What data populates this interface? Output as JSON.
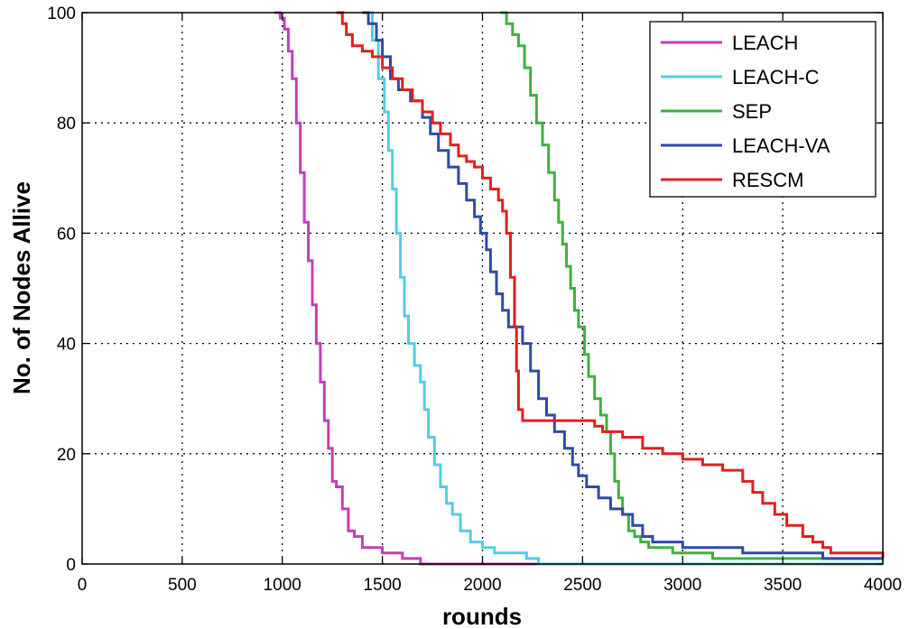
{
  "chart_data": {
    "type": "line",
    "title": "",
    "xlabel": "rounds",
    "ylabel": "No. of Nodes Allive",
    "xlim": [
      0,
      4000
    ],
    "ylim": [
      0,
      100
    ],
    "xticks": [
      0,
      500,
      1000,
      1500,
      2000,
      2500,
      3000,
      3500,
      4000
    ],
    "yticks": [
      0,
      20,
      40,
      60,
      80,
      100
    ],
    "grid": true,
    "legend_position": "top-right",
    "series": [
      {
        "name": "LEACH",
        "color": "#c040b8",
        "points": [
          [
            960,
            100
          ],
          [
            990,
            99
          ],
          [
            1010,
            97
          ],
          [
            1030,
            93
          ],
          [
            1050,
            88
          ],
          [
            1070,
            80
          ],
          [
            1090,
            71
          ],
          [
            1110,
            62
          ],
          [
            1130,
            55
          ],
          [
            1150,
            47
          ],
          [
            1170,
            40
          ],
          [
            1190,
            33
          ],
          [
            1210,
            26
          ],
          [
            1230,
            21
          ],
          [
            1250,
            15
          ],
          [
            1270,
            14
          ],
          [
            1300,
            10
          ],
          [
            1330,
            6
          ],
          [
            1360,
            5
          ],
          [
            1400,
            3
          ],
          [
            1450,
            3
          ],
          [
            1500,
            2
          ],
          [
            1550,
            2
          ],
          [
            1600,
            1
          ],
          [
            1650,
            1
          ],
          [
            1690,
            0
          ],
          [
            4000,
            0
          ]
        ]
      },
      {
        "name": "LEACH-C",
        "color": "#55cce0",
        "points": [
          [
            1420,
            100
          ],
          [
            1450,
            95
          ],
          [
            1480,
            88
          ],
          [
            1510,
            82
          ],
          [
            1530,
            75
          ],
          [
            1550,
            68
          ],
          [
            1570,
            60
          ],
          [
            1590,
            52
          ],
          [
            1610,
            45
          ],
          [
            1630,
            40
          ],
          [
            1660,
            36
          ],
          [
            1690,
            33
          ],
          [
            1710,
            28
          ],
          [
            1730,
            23
          ],
          [
            1760,
            18
          ],
          [
            1790,
            14
          ],
          [
            1820,
            11
          ],
          [
            1850,
            9
          ],
          [
            1890,
            6
          ],
          [
            1940,
            4
          ],
          [
            2000,
            3
          ],
          [
            2060,
            2
          ],
          [
            2100,
            2
          ],
          [
            2150,
            2
          ],
          [
            2220,
            1
          ],
          [
            2280,
            0
          ],
          [
            4000,
            0
          ]
        ]
      },
      {
        "name": "SEP",
        "color": "#40b040",
        "points": [
          [
            2090,
            100
          ],
          [
            2120,
            98
          ],
          [
            2150,
            96
          ],
          [
            2180,
            94
          ],
          [
            2210,
            90
          ],
          [
            2240,
            85
          ],
          [
            2270,
            80
          ],
          [
            2300,
            76
          ],
          [
            2330,
            71
          ],
          [
            2360,
            66
          ],
          [
            2380,
            62
          ],
          [
            2400,
            58
          ],
          [
            2420,
            54
          ],
          [
            2440,
            50
          ],
          [
            2460,
            46
          ],
          [
            2480,
            43
          ],
          [
            2510,
            38
          ],
          [
            2530,
            34
          ],
          [
            2560,
            30
          ],
          [
            2590,
            27
          ],
          [
            2620,
            24
          ],
          [
            2640,
            20
          ],
          [
            2660,
            15
          ],
          [
            2680,
            12
          ],
          [
            2700,
            9
          ],
          [
            2730,
            6
          ],
          [
            2760,
            5
          ],
          [
            2790,
            4
          ],
          [
            2830,
            3
          ],
          [
            2880,
            3
          ],
          [
            2950,
            2
          ],
          [
            3050,
            2
          ],
          [
            3150,
            1
          ],
          [
            3400,
            1
          ],
          [
            4000,
            1
          ]
        ]
      },
      {
        "name": "LEACH-VA",
        "color": "#2f4aa8",
        "points": [
          [
            1400,
            100
          ],
          [
            1430,
            98
          ],
          [
            1470,
            95
          ],
          [
            1500,
            92
          ],
          [
            1540,
            88
          ],
          [
            1580,
            86
          ],
          [
            1640,
            84
          ],
          [
            1700,
            81
          ],
          [
            1740,
            78
          ],
          [
            1780,
            75
          ],
          [
            1830,
            72
          ],
          [
            1880,
            69
          ],
          [
            1920,
            66
          ],
          [
            1960,
            63
          ],
          [
            1990,
            60
          ],
          [
            2020,
            57
          ],
          [
            2040,
            53
          ],
          [
            2070,
            49
          ],
          [
            2100,
            46
          ],
          [
            2130,
            43
          ],
          [
            2200,
            40
          ],
          [
            2240,
            35
          ],
          [
            2280,
            30
          ],
          [
            2320,
            27
          ],
          [
            2360,
            24
          ],
          [
            2410,
            21
          ],
          [
            2450,
            18
          ],
          [
            2480,
            16
          ],
          [
            2520,
            14
          ],
          [
            2580,
            12
          ],
          [
            2640,
            10
          ],
          [
            2700,
            9
          ],
          [
            2750,
            7
          ],
          [
            2800,
            5
          ],
          [
            2850,
            4
          ],
          [
            2920,
            4
          ],
          [
            3000,
            3
          ],
          [
            3100,
            3
          ],
          [
            3300,
            2
          ],
          [
            3500,
            2
          ],
          [
            3700,
            1
          ],
          [
            4000,
            1
          ]
        ]
      },
      {
        "name": "RESCM",
        "color": "#e02020",
        "points": [
          [
            1270,
            100
          ],
          [
            1300,
            98
          ],
          [
            1320,
            96
          ],
          [
            1350,
            94
          ],
          [
            1400,
            93
          ],
          [
            1450,
            92
          ],
          [
            1500,
            90
          ],
          [
            1550,
            88
          ],
          [
            1600,
            86
          ],
          [
            1650,
            84
          ],
          [
            1700,
            82
          ],
          [
            1750,
            80
          ],
          [
            1790,
            78
          ],
          [
            1840,
            76
          ],
          [
            1880,
            74
          ],
          [
            1920,
            73
          ],
          [
            1960,
            72
          ],
          [
            2000,
            70
          ],
          [
            2040,
            68
          ],
          [
            2080,
            66
          ],
          [
            2100,
            64
          ],
          [
            2120,
            60
          ],
          [
            2140,
            52
          ],
          [
            2160,
            43
          ],
          [
            2170,
            35
          ],
          [
            2180,
            28
          ],
          [
            2200,
            26
          ],
          [
            2300,
            26
          ],
          [
            2450,
            26
          ],
          [
            2560,
            25
          ],
          [
            2600,
            24
          ],
          [
            2700,
            23
          ],
          [
            2800,
            21
          ],
          [
            2900,
            20
          ],
          [
            3000,
            19
          ],
          [
            3100,
            18
          ],
          [
            3200,
            17
          ],
          [
            3300,
            15
          ],
          [
            3350,
            13
          ],
          [
            3400,
            11
          ],
          [
            3460,
            9
          ],
          [
            3520,
            7
          ],
          [
            3600,
            5
          ],
          [
            3650,
            4
          ],
          [
            3700,
            3
          ],
          [
            3740,
            2
          ],
          [
            3800,
            2
          ],
          [
            3900,
            2
          ],
          [
            4000,
            1
          ]
        ]
      }
    ]
  }
}
